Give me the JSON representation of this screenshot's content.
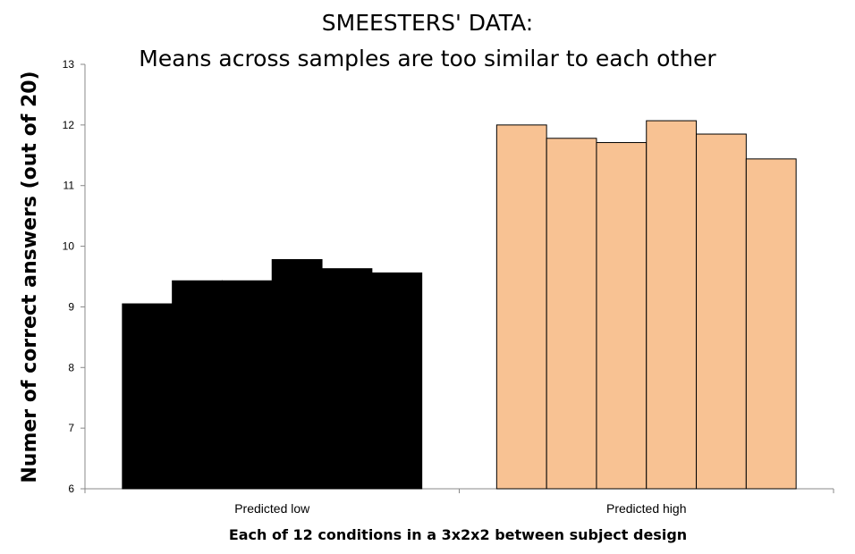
{
  "chart_data": {
    "type": "bar",
    "title": [
      "SMEESTERS' DATA:",
      "Means across samples are too similar to each other"
    ],
    "ylabel": "Numer of correct answers (out of 20)",
    "xlabel": "Each of 12 conditions in a 3x2x2 between subject design",
    "ylim": [
      6,
      13
    ],
    "yticks": [
      6,
      7,
      8,
      9,
      10,
      11,
      12,
      13
    ],
    "grid": false,
    "legend": "none",
    "groups": [
      {
        "label": "Predicted low",
        "color": "#000000",
        "values": [
          9.05,
          9.43,
          9.43,
          9.78,
          9.63,
          9.56
        ]
      },
      {
        "label": "Predicted high",
        "color": "#F8C293",
        "values": [
          12.0,
          11.78,
          11.71,
          12.07,
          11.85,
          11.44
        ]
      }
    ]
  }
}
